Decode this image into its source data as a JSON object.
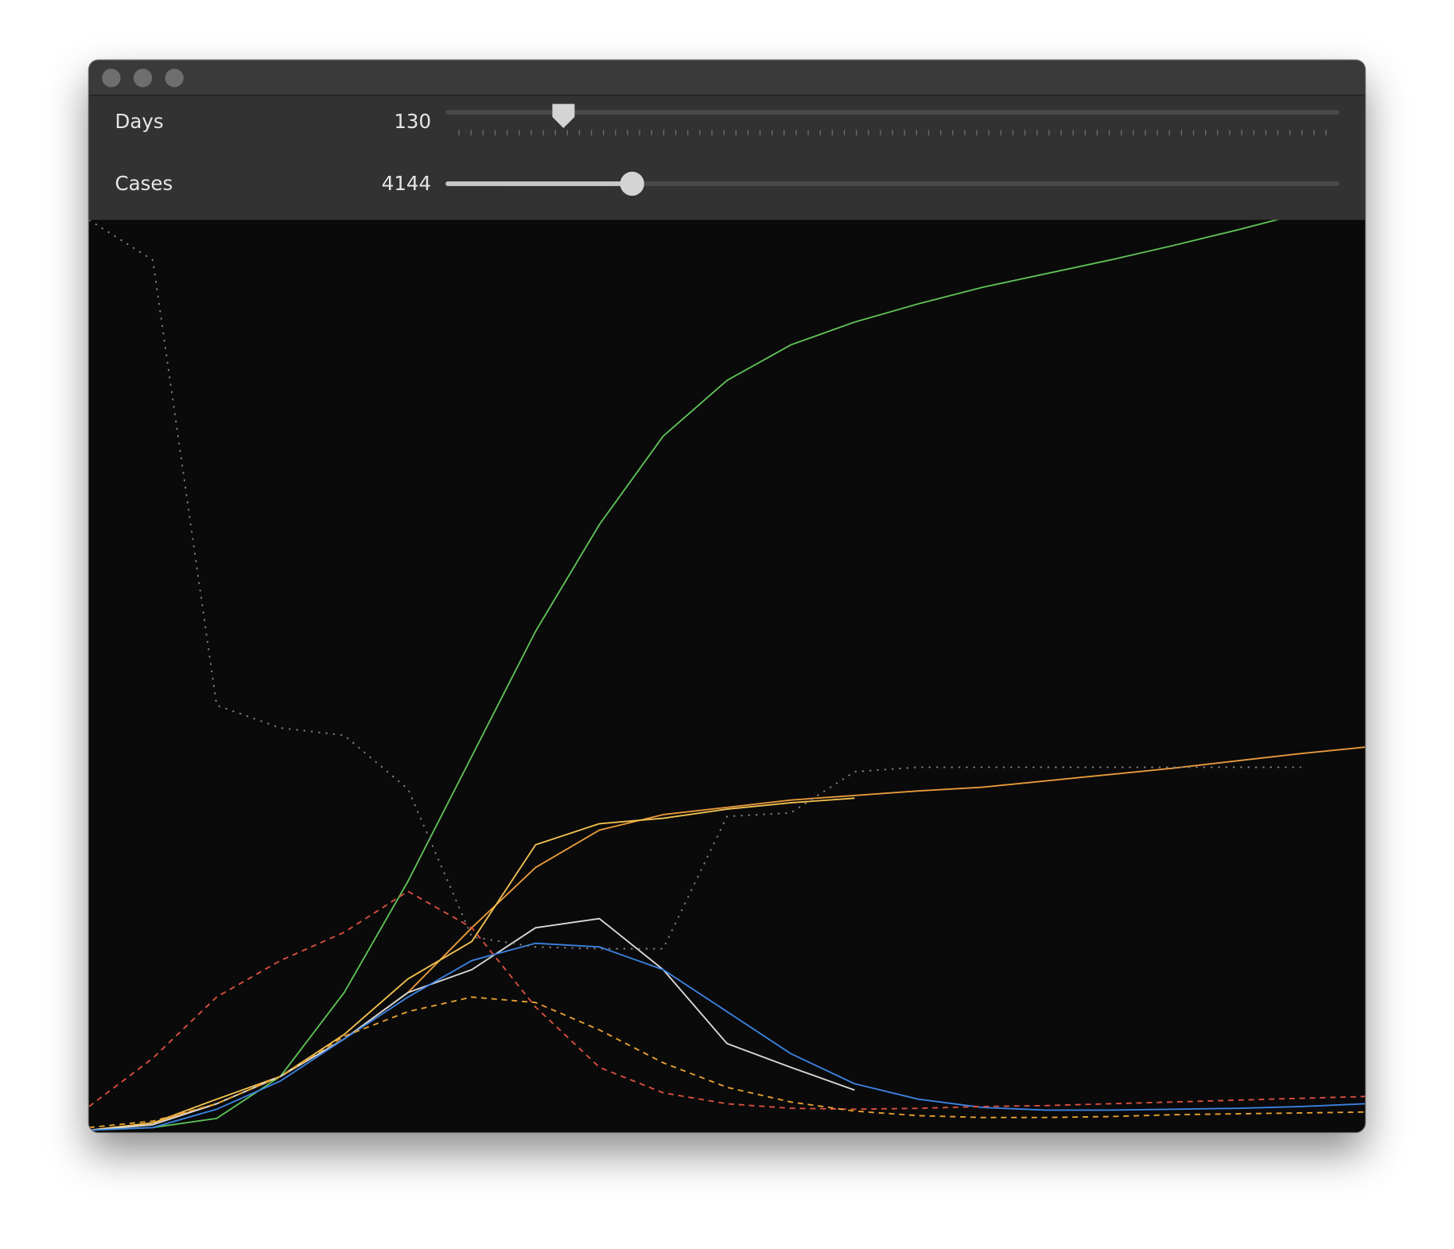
{
  "controls": [
    {
      "label": "Days",
      "value": 130,
      "range": [
        0,
        1000
      ],
      "tick_count": 73
    },
    {
      "label": "Cases",
      "value": 4144,
      "range": [
        0,
        20000
      ]
    }
  ],
  "chart_data": {
    "type": "line",
    "x": [
      0,
      5,
      10,
      15,
      20,
      25,
      30,
      35,
      40,
      45,
      50,
      55,
      60,
      65,
      70,
      75,
      80,
      85,
      90,
      95,
      100
    ],
    "xlim": [
      0,
      100
    ],
    "ylim": [
      0,
      100
    ],
    "series": [
      {
        "color": "#5fc157",
        "dash": "solid",
        "values": [
          0.2,
          0.5,
          1.5,
          6.1,
          15.3,
          27.5,
          41.2,
          54.9,
          66.6,
          76.3,
          82.4,
          86.3,
          88.8,
          90.8,
          92.6,
          94.1,
          95.6,
          97.2,
          98.9,
          100.7,
          102.5
        ]
      },
      {
        "color": "#e89a3c",
        "dash": "solid",
        "values": [
          0.2,
          1,
          3.1,
          6.1,
          10.2,
          15.3,
          22.4,
          29,
          33.1,
          34.8,
          35.6,
          36.4,
          36.9,
          37.4,
          37.8,
          38.5,
          39.2,
          39.9,
          40.7,
          41.5,
          42.2
        ]
      },
      {
        "color": "#f0c050",
        "dash": "solid",
        "values": [
          0.2,
          1,
          3.6,
          6.1,
          10.7,
          16.8,
          20.9,
          31.5,
          33.8,
          34.4,
          35.4,
          36.1,
          36.6,
          null,
          null,
          null,
          null,
          null,
          null,
          null,
          null
        ]
      },
      {
        "color": "#d8d8d8",
        "dash": "solid",
        "values": [
          0.2,
          0.8,
          3.1,
          6.1,
          10.2,
          15.3,
          17.8,
          22.4,
          23.4,
          17.8,
          9.7,
          7.1,
          4.6,
          null,
          null,
          null,
          null,
          null,
          null,
          null,
          null
        ]
      },
      {
        "color": "#3b82e0",
        "dash": "solid",
        "values": [
          0.2,
          0.5,
          2.5,
          5.6,
          10.2,
          14.8,
          18.8,
          20.7,
          20.3,
          17.8,
          13.2,
          8.6,
          5.3,
          3.6,
          2.7,
          2.4,
          2.4,
          2.5,
          2.6,
          2.8,
          3.1
        ]
      },
      {
        "color": "#d9503f",
        "dash": "dashed",
        "values": [
          2.8,
          8.1,
          14.8,
          18.8,
          21.9,
          26.4,
          22.4,
          13.7,
          7.1,
          4.3,
          3.1,
          2.6,
          2.5,
          2.6,
          2.8,
          2.9,
          3.1,
          3.3,
          3.5,
          3.7,
          3.9
        ]
      },
      {
        "color": "#e8a030",
        "dash": "dashed",
        "values": [
          0.5,
          1.2,
          3.1,
          6.1,
          10.5,
          13.2,
          14.8,
          14.2,
          11.2,
          7.6,
          4.9,
          3.3,
          2.3,
          1.8,
          1.6,
          1.6,
          1.7,
          1.9,
          2,
          2.1,
          2.2
        ]
      },
      {
        "color": "#808080",
        "dash": "dotted",
        "values": [
          100,
          95.6,
          46.8,
          44.3,
          43.5,
          37.6,
          21.4,
          20.3,
          20.1,
          20.1,
          34.6,
          35,
          39.5,
          40,
          40,
          40,
          40,
          40,
          40,
          40,
          null
        ]
      }
    ]
  }
}
